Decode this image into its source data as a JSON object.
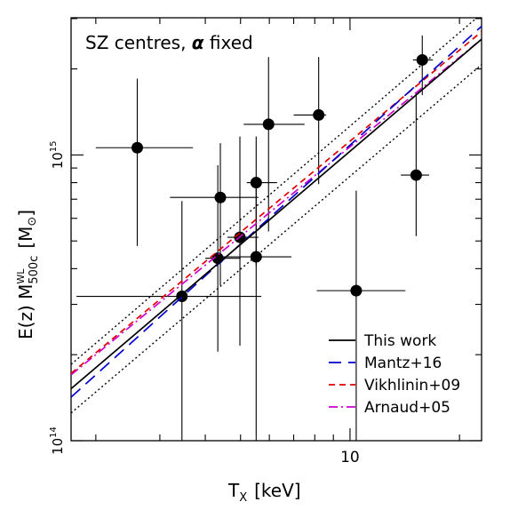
{
  "chart_data": {
    "type": "scatter",
    "title": "",
    "annotation": {
      "prefix": "SZ centres, ",
      "symbol": "α",
      "suffix": " fixed"
    },
    "xlabel": {
      "main": "T",
      "sub": "X",
      "unit": "[keV]"
    },
    "ylabel": {
      "main": "E(z) M",
      "sup": "WL",
      "sub": "500c",
      "unit_open": "[M",
      "unit_sym": "⊙",
      "unit_close": "]"
    },
    "x_scale": "log",
    "y_scale": "log",
    "xlim": [
      1.71,
      23.0
    ],
    "ylim": [
      100000000000000.0,
      3020000000000000.0
    ],
    "x_ticks": [
      {
        "value": 10,
        "label": "10"
      }
    ],
    "y_ticks": [
      {
        "value": 100000000000000.0,
        "base": "10",
        "exp": "14"
      },
      {
        "value": 1000000000000000.0,
        "base": "10",
        "exp": "15"
      }
    ],
    "points": [
      {
        "x": 2.6,
        "y": 1060000000000000.0,
        "xerr": [
          2.0,
          3.7
        ],
        "yerr": [
          480000000000000.0,
          1850000000000000.0
        ]
      },
      {
        "x": 3.45,
        "y": 320000000000000.0,
        "xerr": [
          1.77,
          5.7
        ],
        "yerr": [
          100000000000000.0,
          690000000000000.0
        ]
      },
      {
        "x": 4.33,
        "y": 435000000000000.0,
        "xerr": [
          4.0,
          5.0
        ],
        "yerr": [
          205000000000000.0,
          920000000000000.0
        ]
      },
      {
        "x": 4.4,
        "y": 710000000000000.0,
        "xerr": [
          3.2,
          5.6
        ],
        "yerr": [
          350000000000000.0,
          1100000000000000.0
        ]
      },
      {
        "x": 4.98,
        "y": 515000000000000.0,
        "xerr": [
          4.6,
          5.6
        ],
        "yerr": [
          215000000000000.0,
          1160000000000000.0
        ]
      },
      {
        "x": 5.52,
        "y": 440000000000000.0,
        "xerr": [
          4.3,
          6.9
        ],
        "yerr": [
          100000000000000.0,
          780000000000000.0
        ]
      },
      {
        "x": 5.52,
        "y": 800000000000000.0,
        "xerr": [
          5.2,
          6.3
        ],
        "yerr": [
          410000000000000.0,
          1160000000000000.0
        ]
      },
      {
        "x": 5.97,
        "y": 1280000000000000.0,
        "xerr": [
          5.1,
          7.5
        ],
        "yerr": [
          540000000000000.0,
          2200000000000000.0
        ]
      },
      {
        "x": 8.2,
        "y": 1380000000000000.0,
        "xerr": [
          7.0,
          8.6
        ],
        "yerr": [
          790000000000000.0,
          2200000000000000.0
        ]
      },
      {
        "x": 10.4,
        "y": 335000000000000.0,
        "xerr": [
          8.1,
          14.2
        ],
        "yerr": [
          100000000000000.0,
          750000000000000.0
        ]
      },
      {
        "x": 15.2,
        "y": 850000000000000.0,
        "xerr": [
          13.8,
          16.5
        ],
        "yerr": [
          520000000000000.0,
          1650000000000000.0
        ]
      },
      {
        "x": 15.8,
        "y": 2150000000000000.0,
        "xerr": [
          14.9,
          16.9
        ],
        "yerr": [
          1620000000000000.0,
          2620000000000000.0
        ]
      }
    ],
    "series": [
      {
        "name": "This work",
        "color": "#000000",
        "dash": "",
        "y_at_xmin": 152000000000000.0,
        "y_at_xmax": 2540000000000000.0
      },
      {
        "name": "Mantz+16",
        "color": "#0000cc",
        "dash": "14,8",
        "y_at_xmin": 142000000000000.0,
        "y_at_xmax": 2820000000000000.0
      },
      {
        "name": "Vikhlinin+09",
        "color": "#e00000",
        "dash": "7,5",
        "y_at_xmin": 172000000000000.0,
        "y_at_xmax": 2700000000000000.0
      },
      {
        "name": "Arnaud+05",
        "color": "#cc00cc",
        "dash": "10,4,2,4",
        "y_at_xmin": 170000000000000.0,
        "y_at_xmax": 2540000000000000.0
      }
    ],
    "scatter_band": {
      "color": "#000000",
      "dash": "2,3",
      "upper_at_xmin": 185000000000000.0,
      "upper_at_xmax": 3120000000000000.0,
      "lower_at_xmin": 125000000000000.0,
      "lower_at_xmax": 2070000000000000.0
    },
    "legend_position": "bottom-right",
    "grid": false
  }
}
